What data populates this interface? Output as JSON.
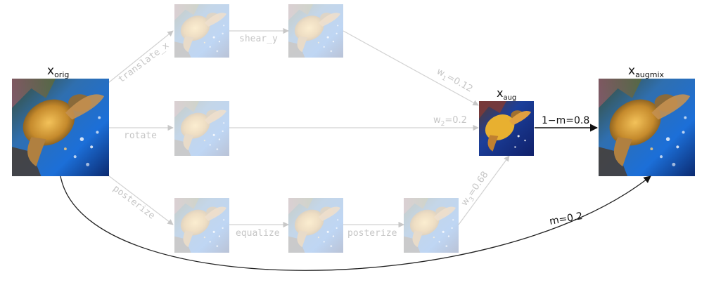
{
  "labels": {
    "x_orig": {
      "base": "x",
      "sub": "orig"
    },
    "x_aug": {
      "base": "x",
      "sub": "aug"
    },
    "x_augmix": {
      "base": "x",
      "sub": "augmix"
    }
  },
  "ops": {
    "translate_x": "translate_x",
    "shear_y": "shear_y",
    "rotate": "rotate",
    "posterize": "posterize",
    "equalize": "equalize",
    "posterize2": "posterize"
  },
  "weights": {
    "w1": {
      "base": "w",
      "sub": "1",
      "value": "=0.12"
    },
    "w2": {
      "base": "w",
      "sub": "2",
      "value": "=0.2"
    },
    "w3": {
      "base": "w",
      "sub": "3",
      "value": "=0.68"
    }
  },
  "mix": {
    "one_minus_m": "1−m=0.8",
    "m": "m=0.2"
  },
  "colors": {
    "faded_text": "#c6c6c6",
    "faded_line": "#d2d2d2",
    "dark_line": "#222222",
    "text": "#111111"
  }
}
